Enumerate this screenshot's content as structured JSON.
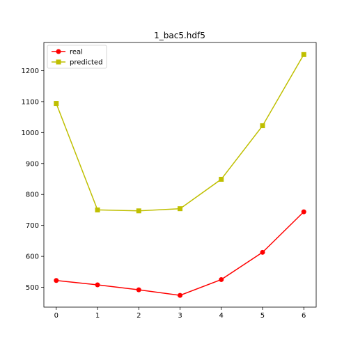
{
  "chart_data": {
    "type": "line",
    "title": "1_bac5.hdf5",
    "xlabel": "",
    "ylabel": "",
    "x": [
      0,
      1,
      2,
      3,
      4,
      5,
      6
    ],
    "xlim": [
      -0.3,
      6.3
    ],
    "ylim": [
      436,
      1291
    ],
    "xticks": [
      0,
      1,
      2,
      3,
      4,
      5,
      6
    ],
    "yticks": [
      500,
      600,
      700,
      800,
      900,
      1000,
      1100,
      1200
    ],
    "grid": false,
    "legend": "top-left",
    "series": [
      {
        "name": "real",
        "color": "#ff0000",
        "marker": "circle",
        "values": [
          522,
          508,
          492,
          474,
          525,
          613,
          744
        ]
      },
      {
        "name": "predicted",
        "color": "#bfbf00",
        "marker": "square",
        "values": [
          1094,
          750,
          747,
          754,
          849,
          1022,
          1252
        ]
      }
    ]
  }
}
